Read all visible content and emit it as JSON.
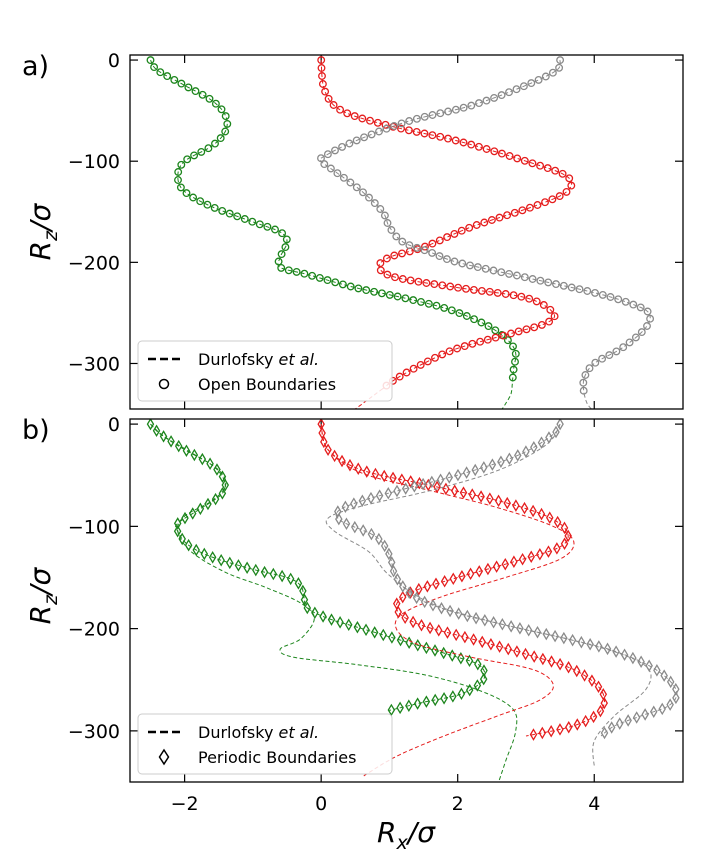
{
  "figure": {
    "colors": {
      "green": "#1c851c",
      "red": "#e51d1d",
      "gray": "#8a8a8a"
    },
    "xlabel": {
      "main": "R",
      "sub": "x",
      "tail": "/σ"
    },
    "ylabel": {
      "main": "R",
      "sub": "z",
      "tail": "/σ"
    }
  },
  "chart_data": [
    {
      "type": "line",
      "panel": "a)",
      "xlim": [
        -2.8,
        5.3
      ],
      "ylim": [
        -345,
        5
      ],
      "xticks": [
        -2,
        0,
        2,
        4
      ],
      "yticks": [
        0,
        -100,
        -200,
        -300
      ],
      "legend": {
        "placement": "lower-left",
        "entries": [
          {
            "marker": "dashed-line",
            "label_pre": "Durlofsky ",
            "label_em": "et al.",
            "label_post": ""
          },
          {
            "marker": "circle",
            "label_pre": "Open Boundaries",
            "label_em": "",
            "label_post": ""
          }
        ]
      },
      "series": [
        {
          "color": "green",
          "marker": "circle",
          "x": [
            -2.5,
            -2.4,
            -2.0,
            -1.6,
            -1.4,
            -1.4,
            -1.6,
            -2.0,
            -2.1,
            -2.0,
            -1.6,
            -1.0,
            -0.6,
            -0.5,
            -0.6,
            -0.6,
            -0.2,
            0.5,
            1.2,
            1.8,
            2.2,
            2.5,
            2.75,
            2.85,
            2.82,
            2.8
          ],
          "y": [
            0,
            -10,
            -25,
            -40,
            -55,
            -70,
            -85,
            -100,
            -115,
            -130,
            -145,
            -160,
            -170,
            -180,
            -195,
            -205,
            -212,
            -225,
            -235,
            -245,
            -255,
            -265,
            -278,
            -290,
            -305,
            -320
          ]
        },
        {
          "color": "green",
          "marker": "none",
          "x": [
            2.8,
            2.78,
            2.7,
            2.6
          ],
          "y": [
            -320,
            -330,
            -340,
            -350
          ]
        },
        {
          "color": "red",
          "marker": "circle",
          "x": [
            0,
            0.05,
            0.3,
            1,
            2,
            3,
            3.6,
            3.6,
            3.1,
            2.2,
            1.5,
            1.0,
            0.85,
            1.1,
            2.0,
            3,
            3.4,
            3.3,
            2.8,
            2,
            1.5,
            1.1,
            0.9
          ],
          "y": [
            0,
            -30,
            -50,
            -65,
            -80,
            -100,
            -115,
            -130,
            -145,
            -165,
            -185,
            -195,
            -205,
            -215,
            -225,
            -235,
            -250,
            -260,
            -270,
            -285,
            -300,
            -315,
            -325
          ]
        },
        {
          "color": "red",
          "marker": "none",
          "x": [
            0.9,
            0.7,
            0.5
          ],
          "y": [
            -325,
            -335,
            -345
          ]
        },
        {
          "color": "gray",
          "marker": "circle",
          "x": [
            3.5,
            3.45,
            3.0,
            2.2,
            1.3,
            0.5,
            0.05,
            0,
            0.2,
            0.6,
            0.9,
            1,
            1.2,
            1.6,
            2,
            3,
            4,
            4.5,
            4.8,
            4.75,
            4.4,
            4.0,
            3.85,
            3.85
          ],
          "y": [
            0,
            -10,
            -25,
            -45,
            -60,
            -80,
            -95,
            -100,
            -110,
            -130,
            -150,
            -165,
            -180,
            -190,
            -200,
            -215,
            -230,
            -240,
            -250,
            -265,
            -285,
            -300,
            -315,
            -330
          ]
        },
        {
          "color": "gray",
          "marker": "none",
          "x": [
            3.85,
            3.9,
            4.0
          ],
          "y": [
            -330,
            -340,
            -348
          ]
        }
      ]
    },
    {
      "type": "line",
      "panel": "b)",
      "xlim": [
        -2.8,
        5.3
      ],
      "ylim": [
        -350,
        5
      ],
      "xticks": [
        -2,
        0,
        2,
        4
      ],
      "yticks": [
        0,
        -100,
        -200,
        -300
      ],
      "legend": {
        "placement": "lower-left",
        "entries": [
          {
            "marker": "dashed-line",
            "label_pre": "Durlofsky ",
            "label_em": "et al.",
            "label_post": ""
          },
          {
            "marker": "diamond",
            "label_pre": "Periodic Boundaries",
            "label_em": "",
            "label_post": ""
          }
        ]
      },
      "series": [
        {
          "color": "green",
          "marker": "diamond",
          "x": [
            -2.5,
            -2.35,
            -2.0,
            -1.6,
            -1.42,
            -1.45,
            -1.75,
            -2.1,
            -2.1,
            -1.95,
            -1.6,
            -1.0,
            -0.5,
            -0.3,
            -0.25,
            -0.2,
            0.1,
            0.6,
            1.1,
            1.6,
            2.0,
            2.3,
            2.4,
            2.3,
            2.0,
            1.5,
            1.0
          ],
          "y": [
            0,
            -10,
            -25,
            -40,
            -55,
            -68,
            -82,
            -97,
            -105,
            -118,
            -130,
            -142,
            -150,
            -158,
            -170,
            -180,
            -190,
            -200,
            -210,
            -220,
            -228,
            -235,
            -245,
            -255,
            -265,
            -272,
            -280
          ]
        },
        {
          "color": "green",
          "marker": "none",
          "x": [
            -2.5,
            -2.3,
            -1.9,
            -1.5,
            -1.4,
            -1.6,
            -2.0,
            -2.1,
            -1.9,
            -1.4,
            -0.8,
            -0.3,
            -0.1,
            -0.3,
            -0.6,
            -0.4,
            0.5,
            1.5,
            2.3,
            2.8,
            2.85,
            2.7,
            2.6
          ],
          "y": [
            0,
            -12,
            -28,
            -45,
            -60,
            -75,
            -90,
            -105,
            -125,
            -145,
            -160,
            -175,
            -190,
            -210,
            -220,
            -228,
            -235,
            -245,
            -260,
            -278,
            -300,
            -330,
            -350
          ]
        },
        {
          "color": "red",
          "marker": "diamond",
          "x": [
            0,
            0.1,
            0.6,
            1.6,
            2.6,
            3.3,
            3.6,
            3.5,
            2.8,
            2.0,
            1.3,
            1.1,
            1.4,
            2.2,
            3.0,
            3.7,
            4.1,
            4.1,
            3.7,
            3.0
          ],
          "y": [
            0,
            -25,
            -45,
            -60,
            -75,
            -90,
            -105,
            -120,
            -135,
            -150,
            -165,
            -180,
            -195,
            -210,
            -225,
            -240,
            -260,
            -280,
            -295,
            -305
          ]
        },
        {
          "color": "red",
          "marker": "none",
          "x": [
            0,
            0.1,
            0.6,
            1.6,
            2.6,
            3.4,
            3.7,
            3.5,
            2.7,
            1.8,
            1.2,
            1.1,
            1.4,
            2.2,
            3.1,
            3.4,
            3.2,
            2.6,
            1.8,
            1.1,
            0.6
          ],
          "y": [
            0,
            -25,
            -48,
            -65,
            -82,
            -100,
            -115,
            -132,
            -150,
            -168,
            -185,
            -200,
            -215,
            -228,
            -240,
            -255,
            -270,
            -285,
            -305,
            -325,
            -345
          ]
        },
        {
          "color": "gray",
          "marker": "diamond",
          "x": [
            3.5,
            3.4,
            2.9,
            2.1,
            1.3,
            0.6,
            0.25,
            0.3,
            0.8,
            1.0,
            1.1,
            1.4,
            2.0,
            2.8,
            3.6,
            4.3,
            4.9,
            5.2,
            5.1,
            4.7,
            4.3,
            4.1
          ],
          "y": [
            0,
            -10,
            -30,
            -48,
            -62,
            -75,
            -85,
            -95,
            -110,
            -128,
            -150,
            -170,
            -185,
            -198,
            -210,
            -222,
            -240,
            -260,
            -275,
            -285,
            -295,
            -305
          ]
        },
        {
          "color": "gray",
          "marker": "none",
          "x": [
            3.5,
            3.3,
            2.6,
            1.6,
            0.6,
            0.1,
            0.2,
            0.7,
            1.0,
            1.6,
            2.6,
            3.6,
            4.4,
            4.8,
            4.75,
            4.3,
            4.0,
            4.0
          ],
          "y": [
            0,
            -20,
            -45,
            -65,
            -80,
            -92,
            -105,
            -125,
            -148,
            -175,
            -195,
            -210,
            -225,
            -240,
            -260,
            -285,
            -310,
            -335
          ]
        }
      ]
    }
  ]
}
